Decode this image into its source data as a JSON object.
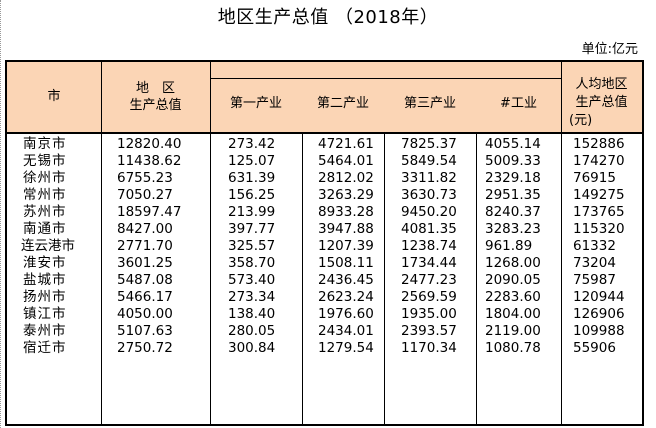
{
  "title": "地区生产总值   （2018年）",
  "unit": "单位:亿元",
  "headers": {
    "city": "市",
    "gdp_line1": "地　区",
    "gdp_line2": "生产总值",
    "primary": "第一产业",
    "secondary": "第二产业",
    "tertiary": "第三产业",
    "industry": "#工业",
    "percap_line1": "人均地区",
    "percap_line2": "生产总值",
    "percap_line3": "(元)"
  },
  "rows": [
    {
      "city": "南京市",
      "gdp": "12820.40",
      "primary": "273.42",
      "secondary": "4721.61",
      "tertiary": "7825.37",
      "industry": "4055.14",
      "per_capita": "152886"
    },
    {
      "city": "无锡市",
      "gdp": "11438.62",
      "primary": "125.07",
      "secondary": "5464.01",
      "tertiary": "5849.54",
      "industry": "5009.33",
      "per_capita": "174270"
    },
    {
      "city": "徐州市",
      "gdp": "6755.23",
      "primary": "631.39",
      "secondary": "2812.02",
      "tertiary": "3311.82",
      "industry": "2329.18",
      "per_capita": "76915"
    },
    {
      "city": "常州市",
      "gdp": "7050.27",
      "primary": "156.25",
      "secondary": "3263.29",
      "tertiary": "3630.73",
      "industry": "2951.35",
      "per_capita": "149275"
    },
    {
      "city": "苏州市",
      "gdp": "18597.47",
      "primary": "213.99",
      "secondary": "8933.28",
      "tertiary": "9450.20",
      "industry": "8240.37",
      "per_capita": "173765"
    },
    {
      "city": "南通市",
      "gdp": "8427.00",
      "primary": "397.77",
      "secondary": "3947.88",
      "tertiary": "4081.35",
      "industry": "3283.23",
      "per_capita": "115320"
    },
    {
      "city": "连云港市",
      "gdp": "2771.70",
      "primary": "325.57",
      "secondary": "1207.39",
      "tertiary": "1238.74",
      "industry": "961.89",
      "per_capita": "61332"
    },
    {
      "city": "淮安市",
      "gdp": "3601.25",
      "primary": "358.70",
      "secondary": "1508.11",
      "tertiary": "1734.44",
      "industry": "1268.00",
      "per_capita": "73204"
    },
    {
      "city": "盐城市",
      "gdp": "5487.08",
      "primary": "573.40",
      "secondary": "2436.45",
      "tertiary": "2477.23",
      "industry": "2090.05",
      "per_capita": "75987"
    },
    {
      "city": "扬州市",
      "gdp": "5466.17",
      "primary": "273.34",
      "secondary": "2623.24",
      "tertiary": "2569.59",
      "industry": "2283.60",
      "per_capita": "120944"
    },
    {
      "city": "镇江市",
      "gdp": "4050.00",
      "primary": "138.40",
      "secondary": "1976.60",
      "tertiary": "1935.00",
      "industry": "1804.00",
      "per_capita": "126906"
    },
    {
      "city": "泰州市",
      "gdp": "5107.63",
      "primary": "280.05",
      "secondary": "2434.01",
      "tertiary": "2393.57",
      "industry": "2119.00",
      "per_capita": "109988"
    },
    {
      "city": "宿迁市",
      "gdp": "2750.72",
      "primary": "300.84",
      "secondary": "1279.54",
      "tertiary": "1170.34",
      "industry": "1080.78",
      "per_capita": "55906"
    }
  ]
}
